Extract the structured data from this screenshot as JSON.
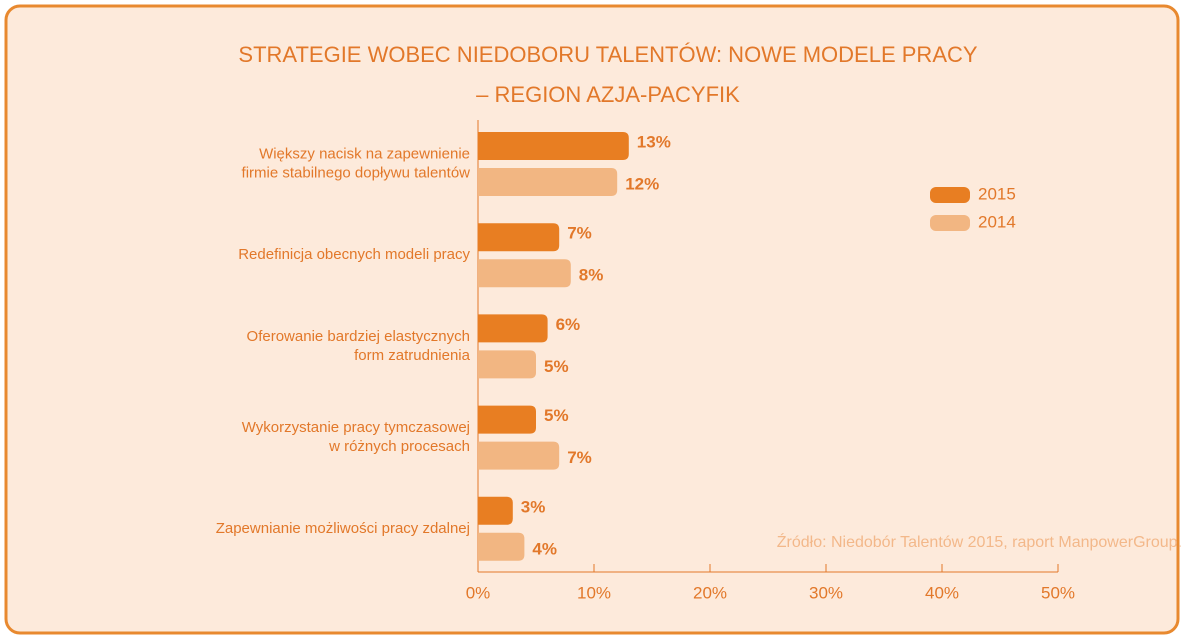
{
  "chart_data": {
    "type": "bar",
    "orientation": "horizontal",
    "title": [
      "STRATEGIE WOBEC NIEDOBORU TALENTÓW: NOWE MODELE PRACY",
      "– REGION AZJA-PACYFIK"
    ],
    "categories": [
      [
        "Większy nacisk na zapewnienie",
        "firmie stabilnego dopływu talentów"
      ],
      [
        "Redefinicja obecnych modeli pracy"
      ],
      [
        "Oferowanie bardziej elastycznych",
        "form zatrudnienia"
      ],
      [
        "Wykorzystanie pracy tymczasowej",
        "w różnych procesach"
      ],
      [
        "Zapewnianie możliwości pracy zdalnej"
      ]
    ],
    "series": [
      {
        "name": "2015",
        "color": "#e87e22",
        "values": [
          13,
          7,
          6,
          5,
          3
        ],
        "value_labels": [
          "13%",
          "7%",
          "6%",
          "5%",
          "3%"
        ]
      },
      {
        "name": "2014",
        "color": "#f2b682",
        "values": [
          12,
          8,
          5,
          7,
          4
        ],
        "value_labels": [
          "12%",
          "8%",
          "5%",
          "7%",
          "4%"
        ]
      }
    ],
    "xlim": [
      0,
      50
    ],
    "xticks": [
      {
        "value": 0,
        "label": "0%"
      },
      {
        "value": 10,
        "label": "10%"
      },
      {
        "value": 20,
        "label": "20%"
      },
      {
        "value": 30,
        "label": "30%"
      },
      {
        "value": 40,
        "label": "40%"
      },
      {
        "value": 50,
        "label": "50%"
      }
    ],
    "legend": "upper right",
    "source": "Źródło: Niedobór Talentów 2015, raport ManpowerGroup."
  }
}
